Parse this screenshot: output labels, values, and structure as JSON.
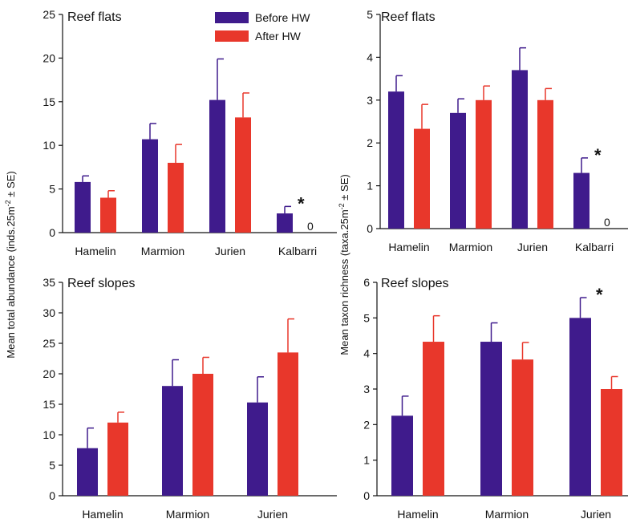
{
  "legend": {
    "before": "Before HW",
    "after": "After HW"
  },
  "y_labels": {
    "abundance": "Mean total abundance (inds.25m-2 ± SE)",
    "richness": "Mean taxon richness (taxa.25m-2 ± SE)"
  },
  "colors": {
    "before": "#3f1b8c",
    "after": "#e8372b"
  },
  "chart_data": [
    {
      "type": "bar",
      "title": "Reef flats",
      "ylabel": "Mean total abundance (inds.25m-2 ± SE)",
      "categories": [
        "Hamelin",
        "Marmion",
        "Jurien",
        "Kalbarri"
      ],
      "ylim": [
        0,
        25
      ],
      "yticks": [
        0,
        5,
        10,
        15,
        20,
        25
      ],
      "series": [
        {
          "name": "Before HW",
          "values": [
            5.8,
            10.7,
            15.2,
            2.2
          ],
          "errors": [
            0.7,
            1.8,
            4.7,
            0.8
          ]
        },
        {
          "name": "After HW",
          "values": [
            4.0,
            8.0,
            13.2,
            0
          ],
          "errors": [
            0.8,
            2.1,
            2.8,
            0
          ]
        }
      ],
      "annotations": [
        {
          "category": "Kalbarri",
          "series": 0,
          "text": "*"
        },
        {
          "category": "Kalbarri",
          "series": 1,
          "text": "0"
        }
      ]
    },
    {
      "type": "bar",
      "title": "Reef flats",
      "ylabel": "Mean taxon richness (taxa.25m-2 ± SE)",
      "categories": [
        "Hamelin",
        "Marmion",
        "Jurien",
        "Kalbarri"
      ],
      "ylim": [
        0,
        5
      ],
      "yticks": [
        0,
        1,
        2,
        3,
        4,
        5
      ],
      "series": [
        {
          "name": "Before HW",
          "values": [
            3.2,
            2.7,
            3.7,
            1.3
          ],
          "errors": [
            0.37,
            0.33,
            0.52,
            0.35
          ]
        },
        {
          "name": "After HW",
          "values": [
            2.33,
            3.0,
            3.0,
            0
          ],
          "errors": [
            0.57,
            0.33,
            0.27,
            0
          ]
        }
      ],
      "annotations": [
        {
          "category": "Kalbarri",
          "series": 0,
          "text": "*"
        },
        {
          "category": "Kalbarri",
          "series": 1,
          "text": "0"
        }
      ]
    },
    {
      "type": "bar",
      "title": "Reef slopes",
      "ylabel": "Mean total abundance (inds.25m-2 ± SE)",
      "categories": [
        "Hamelin",
        "Marmion",
        "Jurien"
      ],
      "ylim": [
        0,
        35
      ],
      "yticks": [
        0,
        5,
        10,
        15,
        20,
        25,
        30,
        35
      ],
      "series": [
        {
          "name": "Before HW",
          "values": [
            7.8,
            18.0,
            15.3
          ],
          "errors": [
            3.3,
            4.3,
            4.2
          ]
        },
        {
          "name": "After HW",
          "values": [
            12.0,
            20.0,
            23.5
          ],
          "errors": [
            1.7,
            2.7,
            5.5
          ]
        }
      ],
      "annotations": []
    },
    {
      "type": "bar",
      "title": "Reef slopes",
      "ylabel": "Mean taxon richness (taxa.25m-2 ± SE)",
      "categories": [
        "Hamelin",
        "Marmion",
        "Jurien"
      ],
      "ylim": [
        0,
        6
      ],
      "yticks": [
        0,
        1,
        2,
        3,
        4,
        5,
        6
      ],
      "series": [
        {
          "name": "Before HW",
          "values": [
            2.25,
            4.33,
            5.0
          ],
          "errors": [
            0.55,
            0.53,
            0.57
          ]
        },
        {
          "name": "After HW",
          "values": [
            4.33,
            3.83,
            3.0
          ],
          "errors": [
            0.73,
            0.48,
            0.35
          ]
        }
      ],
      "annotations": [
        {
          "category": "Jurien",
          "series": 0,
          "text": "*"
        }
      ]
    }
  ]
}
